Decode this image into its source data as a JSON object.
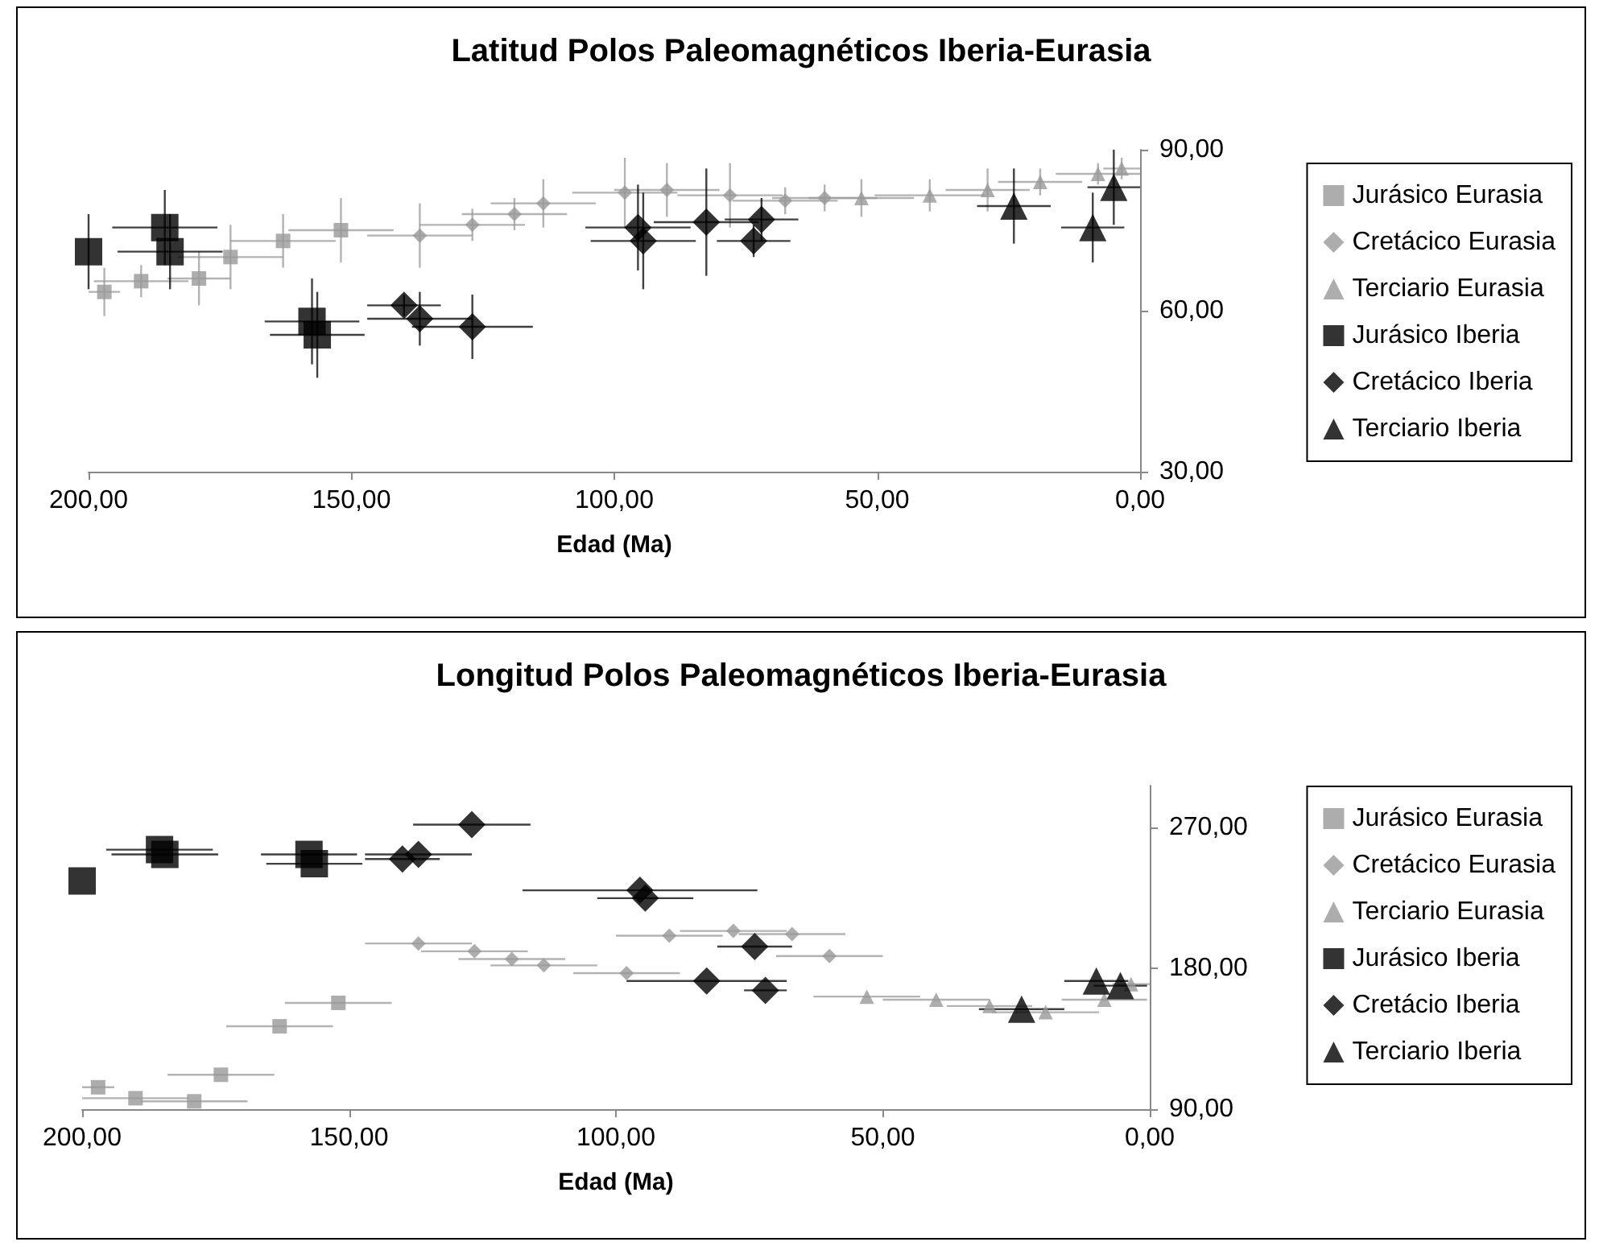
{
  "chart_data": [
    {
      "type": "scatter",
      "title": "Latitud Polos Paleomagnéticos Iberia-Eurasia",
      "xlabel": "Edad (Ma)",
      "xlim": [
        200,
        0
      ],
      "xticks": [
        {
          "value": 200,
          "label": "200,00"
        },
        {
          "value": 150,
          "label": "150,00"
        },
        {
          "value": 100,
          "label": "100,00"
        },
        {
          "value": 50,
          "label": "50,00"
        },
        {
          "value": 0,
          "label": "0,00"
        }
      ],
      "ylim": [
        30,
        90
      ],
      "yticks": [
        {
          "value": 30,
          "label": "30,00"
        },
        {
          "value": 60,
          "label": "60,00"
        },
        {
          "value": 90,
          "label": "90,00"
        }
      ],
      "grid": false,
      "legend": "right",
      "series": [
        {
          "name": "Jurásico Eurasia",
          "color": "#999999",
          "marker": "square",
          "x": [
            197,
            190,
            179,
            173,
            163,
            152
          ],
          "values": [
            63.5,
            65.5,
            66,
            70,
            73,
            75
          ],
          "xerrors": [
            3,
            9,
            6,
            10,
            10,
            10
          ],
          "errors": [
            4.5,
            3,
            5,
            6,
            5,
            6
          ]
        },
        {
          "name": "Cretácico Eurasia",
          "color": "#999999",
          "marker": "diamond",
          "x": [
            137,
            127,
            119,
            113.5,
            98,
            90,
            78,
            67.5,
            60
          ],
          "values": [
            74,
            76,
            78,
            80,
            82,
            82.5,
            81.5,
            80.5,
            81
          ],
          "xerrors": [
            10,
            10,
            10,
            10,
            10,
            10,
            10,
            10,
            10
          ],
          "errors": [
            6,
            3,
            3,
            4.5,
            6.5,
            5,
            6,
            2.5,
            2.5
          ]
        },
        {
          "name": "Terciario Eurasia",
          "color": "#999999",
          "marker": "triangle",
          "x": [
            53,
            40,
            29,
            19,
            8,
            3.5
          ],
          "values": [
            81,
            81.5,
            82.5,
            84,
            85.5,
            86.5
          ],
          "xerrors": [
            10,
            10.5,
            8,
            8,
            8,
            3.5
          ],
          "errors": [
            3.5,
            3,
            4,
            2.5,
            2,
            2
          ]
        },
        {
          "name": "Jurásico Iberia",
          "color": "#000000",
          "marker": "square",
          "x": [
            200,
            185.5,
            184.5,
            157.5,
            156.5
          ],
          "values": [
            71,
            75.5,
            71,
            58,
            55.5
          ],
          "xerrors": [
            null,
            10,
            10,
            9,
            9
          ],
          "errors": [
            7,
            7,
            7,
            8,
            8
          ]
        },
        {
          "name": "Cretácico Iberia",
          "color": "#000000",
          "marker": "diamond",
          "x": [
            140,
            137,
            127,
            95.5,
            94.5,
            82.5,
            72,
            73.5
          ],
          "values": [
            61,
            58.5,
            57,
            75.5,
            73,
            76.5,
            77,
            73
          ],
          "xerrors": [
            7,
            10,
            11.5,
            10,
            10,
            10,
            7,
            7
          ],
          "errors": [
            2,
            5,
            6,
            8,
            9,
            10,
            4,
            3
          ]
        },
        {
          "name": "Terciario Iberia",
          "color": "#000000",
          "marker": "triangle",
          "x": [
            24,
            9,
            5
          ],
          "values": [
            79.5,
            75.5,
            83
          ],
          "xerrors": [
            7,
            6,
            5
          ],
          "errors": [
            7,
            6.5,
            7
          ]
        }
      ]
    },
    {
      "type": "scatter",
      "title": "Longitud Polos Paleomagnéticos Iberia-Eurasia",
      "xlabel": "Edad (Ma)",
      "xlim": [
        200,
        0
      ],
      "xticks": [
        {
          "value": 200,
          "label": "200,00"
        },
        {
          "value": 150,
          "label": "150,00"
        },
        {
          "value": 100,
          "label": "100,00"
        },
        {
          "value": 50,
          "label": "50,00"
        },
        {
          "value": 0,
          "label": "0,00"
        }
      ],
      "ylim": [
        90,
        297
      ],
      "yticks": [
        {
          "value": 90,
          "label": "90,00"
        },
        {
          "value": 180,
          "label": "180,00"
        },
        {
          "value": 270,
          "label": "270,00"
        }
      ],
      "grid": false,
      "legend": "right",
      "series": [
        {
          "name": "Jurásico Eurasia",
          "color": "#999999",
          "marker": "square",
          "x": [
            197,
            190,
            179,
            174,
            163,
            152
          ],
          "values": [
            104,
            97,
            95,
            112,
            143,
            158
          ],
          "xerrors": [
            3,
            10,
            10,
            10,
            10,
            10
          ]
        },
        {
          "name": "Cretácico Eurasia",
          "color": "#999999",
          "marker": "diamond",
          "x": [
            137,
            126.5,
            119.5,
            113.5,
            98,
            90,
            78,
            67,
            60
          ],
          "values": [
            196,
            191,
            186,
            182,
            177,
            201,
            204,
            202,
            188
          ],
          "xerrors": [
            10,
            10,
            10,
            10,
            10,
            10,
            10,
            10,
            10
          ]
        },
        {
          "name": "Terciario Eurasia",
          "color": "#999999",
          "marker": "triangle",
          "x": [
            53,
            40,
            30,
            19.5,
            8.5,
            3.5
          ],
          "values": [
            162,
            160,
            156,
            152,
            160,
            170
          ],
          "xerrors": [
            10,
            10,
            8,
            10,
            8,
            3.5
          ]
        },
        {
          "name": "Jurásico Iberia",
          "color": "#000000",
          "marker": "square",
          "x": [
            200,
            185.5,
            184.5,
            157.5,
            156.5
          ],
          "values": [
            236,
            256,
            253,
            253,
            247
          ],
          "xerrors": [
            null,
            10,
            10,
            9,
            9
          ]
        },
        {
          "name": "Cretácio Iberia",
          "color": "#000000",
          "marker": "diamond",
          "x": [
            140,
            137,
            127,
            95.5,
            94.5,
            83,
            74,
            72
          ],
          "values": [
            250,
            253,
            272,
            230,
            225,
            172,
            194,
            166
          ],
          "xerrors": [
            7,
            10,
            11,
            22,
            9,
            15,
            7,
            4
          ]
        },
        {
          "name": "Terciario Iberia",
          "color": "#000000",
          "marker": "triangle",
          "x": [
            24,
            10,
            5.5
          ],
          "values": [
            154,
            172,
            169
          ],
          "xerrors": [
            8,
            6,
            5
          ]
        }
      ]
    }
  ]
}
